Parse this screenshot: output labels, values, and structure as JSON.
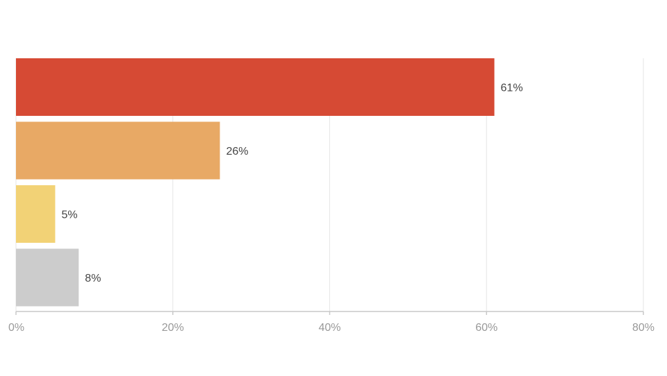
{
  "chart_data": {
    "type": "bar",
    "orientation": "horizontal",
    "values": [
      61,
      26,
      5,
      8
    ],
    "value_labels": [
      "61%",
      "26%",
      "5%",
      "8%"
    ],
    "colors": [
      "#d64a34",
      "#e8a965",
      "#f2d276",
      "#cccccc"
    ],
    "xlim": [
      0,
      80
    ],
    "x_ticks": [
      0,
      20,
      40,
      60,
      80
    ],
    "x_tick_labels": [
      "0%",
      "20%",
      "40%",
      "60%",
      "80%"
    ],
    "grid": "vertical",
    "legend": "none"
  }
}
